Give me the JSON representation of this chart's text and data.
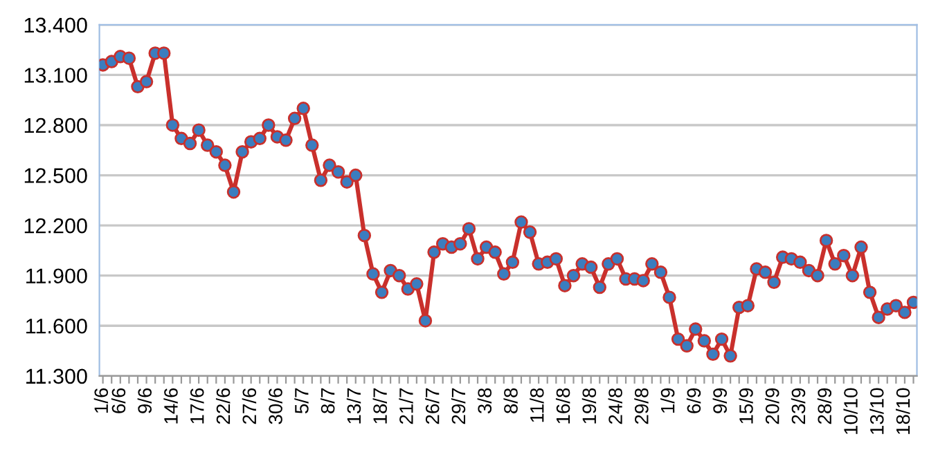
{
  "chart_data": {
    "type": "line",
    "categories": [
      "1/6",
      null,
      "6/6",
      null,
      null,
      "9/6",
      null,
      null,
      "14/6",
      null,
      null,
      "17/6",
      null,
      null,
      "22/6",
      null,
      null,
      "27/6",
      null,
      null,
      "30/6",
      null,
      null,
      "5/7",
      null,
      null,
      "8/7",
      null,
      null,
      "13/7",
      null,
      null,
      "18/7",
      null,
      null,
      "21/7",
      null,
      null,
      "26/7",
      null,
      null,
      "29/7",
      null,
      null,
      "3/8",
      null,
      null,
      "8/8",
      null,
      null,
      "11/8",
      null,
      null,
      "16/8",
      null,
      null,
      "19/8",
      null,
      null,
      "24/8",
      null,
      null,
      "29/8",
      null,
      null,
      "1/9",
      null,
      null,
      "6/9",
      null,
      null,
      "9/9",
      null,
      null,
      "15/9",
      null,
      null,
      "20/9",
      null,
      null,
      "23/9",
      null,
      null,
      "28/9",
      null,
      null,
      "10/10",
      null,
      null,
      "13/10",
      null,
      null,
      "18/10",
      null
    ],
    "series": [
      {
        "color": "#c9302c",
        "values": [
          13160,
          13180,
          13210,
          13200,
          13030,
          13060,
          13230,
          13230,
          12800,
          12720,
          12690,
          12770,
          12680,
          12640,
          12560,
          12400,
          12640,
          12700,
          12720,
          12800,
          12730,
          12710,
          12840,
          12900,
          12680,
          12470,
          12560,
          12520,
          12460,
          12500,
          12140,
          11910,
          11800,
          11930,
          11900,
          11820,
          11850,
          11630,
          12040,
          12090,
          12070,
          12090,
          12180,
          12000,
          12070,
          12040,
          11910,
          11980,
          12220,
          12160,
          11970,
          11980,
          12000,
          11840,
          11900,
          11970,
          11950,
          11830,
          11970,
          12000,
          11880,
          11880,
          11870,
          11970,
          11920,
          11770,
          11520,
          11480,
          11580,
          11510,
          11430,
          11520,
          11420,
          11710,
          11720,
          11940,
          11920,
          11860,
          12010,
          12000,
          11980,
          11930,
          11900,
          12110,
          11970,
          12020,
          11900,
          12070,
          11800,
          11650,
          11700,
          11720,
          11680,
          11740
        ]
      }
    ],
    "ylim": [
      11300,
      13400
    ],
    "yticks": [
      {
        "value": 11300,
        "label": "11.300"
      },
      {
        "value": 11600,
        "label": "11.600"
      },
      {
        "value": 11900,
        "label": "11.900"
      },
      {
        "value": 12200,
        "label": "12.200"
      },
      {
        "value": 12500,
        "label": "12.500"
      },
      {
        "value": 12800,
        "label": "12.800"
      },
      {
        "value": 13100,
        "label": "13.100"
      },
      {
        "value": 13400,
        "label": "13.400"
      }
    ],
    "grid": "y",
    "marker": "circle",
    "line_style": "solid"
  }
}
